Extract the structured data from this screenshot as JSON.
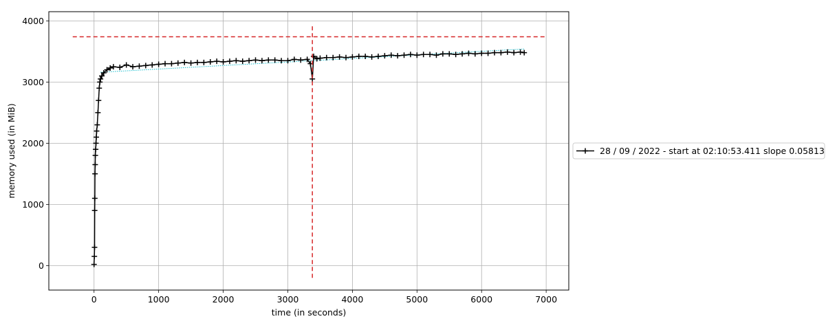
{
  "chart_data": {
    "type": "line",
    "title": "",
    "xlabel": "time (in seconds)",
    "ylabel": "memory used (in MiB)",
    "xlim": [
      -700,
      7350
    ],
    "ylim": [
      -400,
      4150
    ],
    "xticks": [
      0,
      1000,
      2000,
      3000,
      4000,
      5000,
      6000,
      7000
    ],
    "yticks": [
      0,
      1000,
      2000,
      3000,
      4000
    ],
    "grid": true,
    "legend_position": "outside-right",
    "series": [
      {
        "name": "28 / 09 / 2022 - start at 02:10:53.411 slope 0.05813",
        "color": "#000000",
        "marker": "+",
        "points": [
          [
            0,
            20
          ],
          [
            5,
            150
          ],
          [
            8,
            300
          ],
          [
            10,
            900
          ],
          [
            12,
            1100
          ],
          [
            15,
            1500
          ],
          [
            18,
            1650
          ],
          [
            20,
            1800
          ],
          [
            25,
            1900
          ],
          [
            30,
            2000
          ],
          [
            35,
            2100
          ],
          [
            40,
            2200
          ],
          [
            50,
            2300
          ],
          [
            60,
            2500
          ],
          [
            70,
            2700
          ],
          [
            80,
            2900
          ],
          [
            90,
            3000
          ],
          [
            100,
            3050
          ],
          [
            120,
            3100
          ],
          [
            150,
            3150
          ],
          [
            200,
            3200
          ],
          [
            250,
            3230
          ],
          [
            300,
            3250
          ],
          [
            400,
            3240
          ],
          [
            500,
            3280
          ],
          [
            600,
            3250
          ],
          [
            700,
            3260
          ],
          [
            800,
            3270
          ],
          [
            900,
            3280
          ],
          [
            1000,
            3290
          ],
          [
            1100,
            3300
          ],
          [
            1200,
            3300
          ],
          [
            1300,
            3310
          ],
          [
            1400,
            3320
          ],
          [
            1500,
            3310
          ],
          [
            1600,
            3320
          ],
          [
            1700,
            3320
          ],
          [
            1800,
            3330
          ],
          [
            1900,
            3340
          ],
          [
            2000,
            3330
          ],
          [
            2100,
            3340
          ],
          [
            2200,
            3350
          ],
          [
            2300,
            3340
          ],
          [
            2400,
            3350
          ],
          [
            2500,
            3360
          ],
          [
            2600,
            3350
          ],
          [
            2700,
            3360
          ],
          [
            2800,
            3360
          ],
          [
            2900,
            3350
          ],
          [
            3000,
            3350
          ],
          [
            3100,
            3370
          ],
          [
            3200,
            3360
          ],
          [
            3300,
            3370
          ],
          [
            3350,
            3300
          ],
          [
            3380,
            3050
          ],
          [
            3400,
            3420
          ],
          [
            3450,
            3380
          ],
          [
            3500,
            3390
          ],
          [
            3600,
            3400
          ],
          [
            3700,
            3400
          ],
          [
            3800,
            3410
          ],
          [
            3900,
            3400
          ],
          [
            4000,
            3410
          ],
          [
            4100,
            3420
          ],
          [
            4200,
            3420
          ],
          [
            4300,
            3410
          ],
          [
            4400,
            3420
          ],
          [
            4500,
            3430
          ],
          [
            4600,
            3440
          ],
          [
            4700,
            3430
          ],
          [
            4800,
            3440
          ],
          [
            4900,
            3450
          ],
          [
            5000,
            3440
          ],
          [
            5100,
            3450
          ],
          [
            5200,
            3450
          ],
          [
            5300,
            3440
          ],
          [
            5400,
            3460
          ],
          [
            5500,
            3460
          ],
          [
            5600,
            3450
          ],
          [
            5700,
            3460
          ],
          [
            5800,
            3470
          ],
          [
            5900,
            3460
          ],
          [
            6000,
            3470
          ],
          [
            6100,
            3470
          ],
          [
            6200,
            3480
          ],
          [
            6300,
            3480
          ],
          [
            6400,
            3490
          ],
          [
            6500,
            3480
          ],
          [
            6600,
            3490
          ],
          [
            6660,
            3480
          ]
        ]
      }
    ],
    "trend_line": {
      "color": "#17becf",
      "from": [
        100,
        3160
      ],
      "to": [
        6660,
        3540
      ]
    },
    "reference_lines": [
      {
        "orientation": "horizontal",
        "y": 3740,
        "x_from": -330,
        "x_to": 7000,
        "color": "#d62728",
        "style": "dashed"
      },
      {
        "orientation": "vertical",
        "x": 3380,
        "y_from": -200,
        "y_to": 3930,
        "color": "#d62728",
        "style": "dashed"
      }
    ]
  }
}
